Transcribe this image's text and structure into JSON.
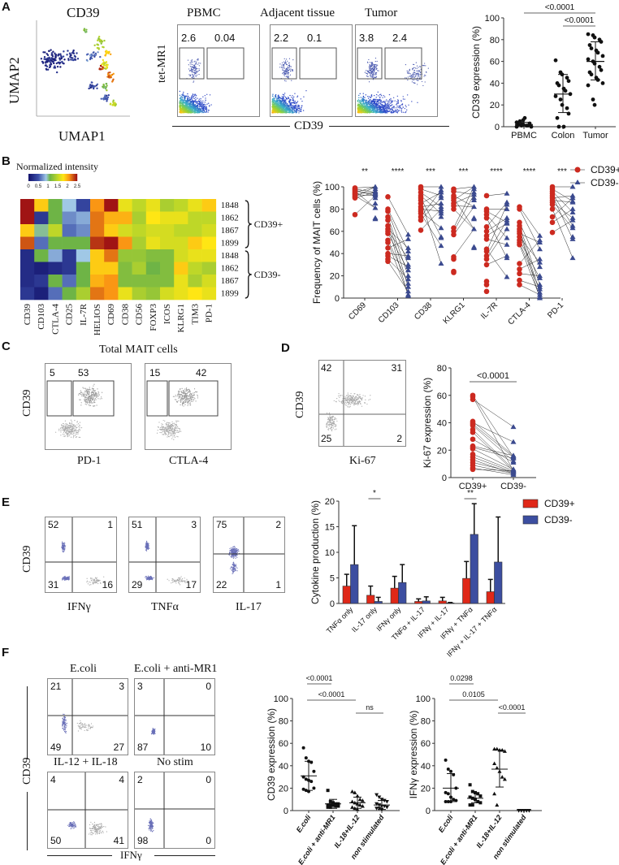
{
  "panels": {
    "A": {
      "label": "A",
      "umap": {
        "title": "CD39",
        "xlabel": "UMAP1",
        "ylabel": "UMAP2"
      },
      "facs": {
        "ylabel": "tet-MR1",
        "xlabel": "CD39",
        "plots": [
          {
            "title": "PBMC",
            "gate_left": "2.6",
            "gate_right": "0.04"
          },
          {
            "title": "Adjacent tissue",
            "gate_left": "2.2",
            "gate_right": "0.1"
          },
          {
            "title": "Tumor",
            "gate_left": "3.8",
            "gate_right": "2.4"
          }
        ]
      }
    },
    "B": {
      "label": "B",
      "heatmap_title": "Normalized intensity",
      "colorbar_ticks": [
        "0",
        "0.5",
        "1",
        "1.5",
        "2",
        "2.5"
      ],
      "row_labels": [
        "1848",
        "1862",
        "1867",
        "1899",
        "1848",
        "1862",
        "1867",
        "1899"
      ],
      "group_labels": [
        "CD39+",
        "CD39-"
      ]
    },
    "C": {
      "label": "C",
      "title": "Total MAIT cells",
      "ylabel": "CD39",
      "plots": [
        {
          "xlabel": "PD-1",
          "gate_left": "5",
          "gate_right": "53"
        },
        {
          "xlabel": "CTLA-4",
          "gate_left": "15",
          "gate_right": "42"
        }
      ]
    },
    "D": {
      "label": "D",
      "facs": {
        "ylabel": "CD39",
        "xlabel": "Ki-67",
        "q_ul": "42",
        "q_ur": "31",
        "q_ll": "25",
        "q_lr": "2"
      }
    },
    "E": {
      "label": "E",
      "ylabel": "CD39",
      "plots": [
        {
          "xlabel": "IFNγ",
          "q_ul": "52",
          "q_ur": "1",
          "q_ll": "31",
          "q_lr": "16"
        },
        {
          "xlabel": "TNFα",
          "q_ul": "51",
          "q_ur": "3",
          "q_ll": "29",
          "q_lr": "17"
        },
        {
          "xlabel": "IL-17",
          "q_ul": "75",
          "q_ur": "2",
          "q_ll": "22",
          "q_lr": "1"
        }
      ]
    },
    "F": {
      "label": "F",
      "ylabel": "CD39",
      "xlabel": "IFNγ",
      "plots": [
        {
          "title": "E.coli",
          "q_ul": "21",
          "q_ur": "3",
          "q_ll": "49",
          "q_lr": "27"
        },
        {
          "title": "E.coli + anti-MR1",
          "q_ul": "3",
          "q_ur": "0",
          "q_ll": "87",
          "q_lr": "10"
        },
        {
          "title": "IL-12 + IL-18",
          "q_ul": "4",
          "q_ur": "4",
          "q_ll": "50",
          "q_lr": "41"
        },
        {
          "title": "No stim",
          "q_ul": "2",
          "q_ur": "0",
          "q_ll": "98",
          "q_lr": "0"
        }
      ]
    }
  },
  "colors": {
    "cd39_pos": "#cc2a20",
    "cd39_neg": "#3b4a8f",
    "bar_pos": "#e02818",
    "bar_neg": "#3c4ea0",
    "dot": "#111111"
  },
  "chart_data": [
    {
      "id": "A-scatter",
      "type": "scatter",
      "title": "",
      "xlabel": "",
      "ylabel": "CD39 expression (%)",
      "categories": [
        "PBMC",
        "Colon",
        "Tumor"
      ],
      "ylim": [
        0,
        100
      ],
      "yticks": [
        0,
        20,
        40,
        60,
        80,
        100
      ],
      "points": [
        [
          0,
          1,
          2,
          1,
          3,
          2,
          5,
          8,
          1,
          0,
          4,
          2,
          6
        ],
        [
          61,
          50,
          48,
          45,
          42,
          40,
          38,
          35,
          33,
          30,
          28,
          25,
          20,
          17,
          12,
          8,
          0,
          0
        ],
        [
          85,
          84,
          82,
          80,
          78,
          75,
          72,
          70,
          68,
          65,
          62,
          60,
          58,
          55,
          52,
          50,
          48,
          45,
          43,
          40,
          38,
          25,
          20
        ]
      ],
      "means": [
        2,
        30,
        60
      ],
      "sd": [
        [
          0,
          4
        ],
        [
          13,
          48
        ],
        [
          43,
          78
        ]
      ],
      "annotations": [
        {
          "text": "<0.0001",
          "from": 0,
          "to": 2
        },
        {
          "text": "<0.0001",
          "from": 1,
          "to": 2
        }
      ]
    },
    {
      "id": "B-heatmap",
      "type": "heatmap",
      "columns": [
        "CD39",
        "CD103",
        "CTLA-4",
        "CD25",
        "IL-7R",
        "HELIOS",
        "CD69",
        "CD38",
        "CD56",
        "FOXP3",
        "ICOS",
        "KLRG1",
        "TIM3",
        "PD-1"
      ],
      "rows": [
        "1848",
        "1862",
        "1867",
        "1899",
        "1848",
        "1862",
        "1867",
        "1899"
      ],
      "groups": [
        {
          "name": "CD39+",
          "rows": [
            0,
            3
          ]
        },
        {
          "name": "CD39-",
          "rows": [
            4,
            7
          ]
        }
      ],
      "range": [
        0,
        2.5
      ],
      "values": [
        [
          2.5,
          1.9,
          1.1,
          0.9,
          0.4,
          2.1,
          2.5,
          1.7,
          1.5,
          1.7,
          1.4,
          1.5,
          1.7,
          1.9
        ],
        [
          2.5,
          0.3,
          1.1,
          0.7,
          0.8,
          2.2,
          2.0,
          2.0,
          1.4,
          1.8,
          1.7,
          1.7,
          1.5,
          1.5
        ],
        [
          1.9,
          1.0,
          1.5,
          0.6,
          0.7,
          2.2,
          1.9,
          1.6,
          1.5,
          1.6,
          1.6,
          1.5,
          1.5,
          1.6
        ],
        [
          2.3,
          0.6,
          1.1,
          1.1,
          1.1,
          2.4,
          2.5,
          2.1,
          1.4,
          1.7,
          1.6,
          1.6,
          1.9,
          1.8
        ],
        [
          0.2,
          1.1,
          0.8,
          0.3,
          0.9,
          1.9,
          2.2,
          1.3,
          1.3,
          1.2,
          1.2,
          1.6,
          1.7,
          1.7
        ],
        [
          0.2,
          0.1,
          0.2,
          0.3,
          1.1,
          1.9,
          1.9,
          1.2,
          1.4,
          1.1,
          1.2,
          1.9,
          1.5,
          1.4
        ],
        [
          0.2,
          0.3,
          1.1,
          0.6,
          1.1,
          2.0,
          2.1,
          1.2,
          1.2,
          1.2,
          1.2,
          1.7,
          1.4,
          1.6
        ],
        [
          0.3,
          0.1,
          0.6,
          1.1,
          1.4,
          2.2,
          2.1,
          1.7,
          1.4,
          1.3,
          1.6,
          1.7,
          1.8,
          1.7
        ]
      ]
    },
    {
      "id": "B-paired",
      "type": "scatter",
      "ylabel": "Frequency of MAIT cells (%)",
      "categories": [
        "CD69",
        "CD103",
        "CD38",
        "KLRG1",
        "IL-7R",
        "CTLA-4",
        "PD-1"
      ],
      "significance": [
        "**",
        "****",
        "***",
        "***",
        "****",
        "****",
        "***"
      ],
      "ylim": [
        0,
        100
      ],
      "yticks": [
        0,
        20,
        40,
        60,
        80,
        100
      ],
      "legend": [
        "CD39+",
        "CD39-"
      ],
      "legend_position": "top-right",
      "series": [
        {
          "name": "CD39+",
          "values": [
            [
              99,
              98,
              97,
              96,
              95,
              94,
              93,
              92,
              91,
              90,
              75
            ],
            [
              91,
              80,
              78,
              73,
              70,
              65,
              62,
              60,
              58,
              52,
              50,
              45,
              40,
              38,
              35,
              33
            ],
            [
              100,
              98,
              95,
              92,
              90,
              88,
              85,
              82,
              80,
              78,
              76,
              73,
              70,
              61
            ],
            [
              98,
              96,
              92,
              90,
              88,
              85,
              83,
              80,
              63,
              60,
              57,
              37,
              35,
              24,
              23
            ],
            [
              92,
              80,
              78,
              75,
              72,
              64,
              60,
              56,
              53,
              44,
              42,
              38,
              35,
              30,
              15,
              12,
              6
            ],
            [
              82,
              80,
              68,
              65,
              62,
              60,
              58,
              55,
              52,
              50,
              48,
              31,
              26,
              22,
              16,
              12
            ],
            [
              100,
              98,
              96,
              94,
              92,
              90,
              88,
              86,
              84,
              80,
              73,
              68,
              59
            ]
          ]
        },
        {
          "name": "CD39-",
          "values": [
            [
              100,
              98,
              96,
              95,
              94,
              93,
              92,
              90,
              85,
              81,
              72,
              71
            ],
            [
              57,
              53,
              45,
              42,
              38,
              36,
              30,
              28,
              25,
              20,
              17,
              13,
              10,
              6,
              3,
              2
            ],
            [
              100,
              97,
              95,
              92,
              90,
              85,
              82,
              80,
              78,
              76,
              73,
              63,
              55,
              54,
              47,
              31
            ],
            [
              100,
              98,
              95,
              93,
              90,
              88,
              82,
              72,
              71,
              62,
              46,
              45
            ],
            [
              94,
              86,
              84,
              80,
              72,
              70,
              68,
              67,
              62,
              54,
              48,
              38,
              36,
              19
            ],
            [
              56,
              52,
              50,
              44,
              35,
              32,
              28,
              20,
              18,
              12,
              10,
              8,
              5,
              3,
              1,
              0
            ],
            [
              100,
              92,
              90,
              87,
              86,
              80,
              77,
              72,
              70,
              65,
              63,
              55,
              53,
              36
            ]
          ]
        }
      ]
    },
    {
      "id": "D-paired",
      "type": "scatter",
      "ylabel": "Ki-67 expression (%)",
      "categories": [
        "CD39+",
        "CD39-"
      ],
      "ylim": [
        0,
        80
      ],
      "yticks": [
        0,
        20,
        40,
        60,
        80
      ],
      "annotations": [
        {
          "text": "<0.0001",
          "from": 0,
          "to": 1
        }
      ],
      "pairs": [
        [
          60,
          15
        ],
        [
          59,
          5
        ],
        [
          57,
          37
        ],
        [
          41,
          16
        ],
        [
          40,
          26
        ],
        [
          39,
          15
        ],
        [
          38,
          12
        ],
        [
          35,
          6
        ],
        [
          33,
          5
        ],
        [
          28,
          11
        ],
        [
          23,
          16
        ],
        [
          22,
          14
        ],
        [
          21,
          6
        ],
        [
          17,
          5
        ],
        [
          15,
          4
        ],
        [
          13,
          3
        ],
        [
          11,
          4
        ],
        [
          9,
          3
        ],
        [
          7,
          2
        ],
        [
          6,
          5
        ]
      ]
    },
    {
      "id": "E-bar",
      "type": "bar",
      "ylabel": "Cytokine production (%)",
      "categories": [
        "TNFα only",
        "IL-17 only",
        "IFNγ only",
        "TNFα + IL-17",
        "IFNγ + IL-17",
        "IFNγ + TNFα",
        "IFNγ + IL-17 + TNFα"
      ],
      "ylim": [
        0,
        20
      ],
      "yticks": [
        0,
        5,
        10,
        15,
        20
      ],
      "legend_position": "top-right",
      "series": [
        {
          "name": "CD39+",
          "values": [
            3.4,
            1.6,
            3.0,
            0.4,
            0.5,
            4.9,
            2.3
          ],
          "err": [
            2.3,
            1.8,
            2.3,
            0.5,
            0.7,
            3.3,
            2.4
          ]
        },
        {
          "name": "CD39-",
          "values": [
            7.6,
            0.4,
            4.1,
            0.5,
            0.1,
            13.5,
            8.1
          ],
          "err": [
            7.6,
            0.8,
            3.5,
            0.8,
            0.1,
            6.0,
            8.8
          ]
        }
      ],
      "annotations": [
        {
          "text": "*",
          "category": 1
        },
        {
          "text": "**",
          "category": 5
        }
      ]
    },
    {
      "id": "F-CD39",
      "type": "scatter",
      "ylabel": "CD39 expression (%)",
      "categories": [
        "E.coli",
        "E.coli + anti-MR1",
        "IL-18+IL-12",
        "non stimulated"
      ],
      "ylim": [
        0,
        100
      ],
      "yticks": [
        0,
        20,
        40,
        60,
        80,
        100
      ],
      "points": [
        [
          56,
          47,
          44,
          43,
          35,
          30,
          28,
          27,
          26,
          20,
          19,
          18,
          17
        ],
        [
          18,
          8,
          7,
          6,
          6,
          5,
          5,
          5,
          4,
          4,
          3,
          3
        ],
        [
          17,
          16,
          13,
          10,
          9,
          8,
          7,
          6,
          5,
          4,
          3,
          2,
          1
        ],
        [
          14,
          12,
          10,
          9,
          8,
          6,
          5,
          4,
          4,
          3,
          2,
          2,
          1
        ]
      ],
      "means": [
        31,
        6,
        7,
        5
      ],
      "sd": [
        [
          18,
          44
        ],
        [
          2,
          10
        ],
        [
          2,
          12
        ],
        [
          1,
          9
        ]
      ],
      "annotations": [
        {
          "text": "<0.0001",
          "from": 0,
          "to": 1
        },
        {
          "text": "<0.0001",
          "from": 0,
          "to": 2
        },
        {
          "text": "ns",
          "from": 2,
          "to": 3
        }
      ]
    },
    {
      "id": "F-IFNg",
      "type": "scatter",
      "ylabel": "IFNγ expression (%)",
      "categories": [
        "E.coli",
        "E.coli + anti-MR1",
        "IL-18+IL-12",
        "non stimulated"
      ],
      "ylim": [
        0,
        100
      ],
      "yticks": [
        0,
        20,
        40,
        60,
        80,
        100
      ],
      "points": [
        [
          45,
          37,
          35,
          32,
          20,
          16,
          15,
          12,
          10,
          9,
          8,
          8,
          8
        ],
        [
          23,
          17,
          16,
          15,
          13,
          12,
          11,
          10,
          8,
          7,
          5,
          5
        ],
        [
          55,
          55,
          54,
          54,
          53,
          42,
          38,
          35,
          30,
          28,
          15,
          5
        ],
        [
          0,
          0,
          0,
          0,
          0,
          0,
          0,
          0,
          0,
          0
        ]
      ],
      "means": [
        20,
        11,
        37,
        0
      ],
      "sd": [
        [
          8,
          33
        ],
        [
          7,
          16
        ],
        [
          21,
          54
        ],
        [
          0,
          0
        ]
      ],
      "annotations": [
        {
          "text": "0.0298",
          "from": 0,
          "to": 1
        },
        {
          "text": "0.0105",
          "from": 0,
          "to": 2
        },
        {
          "text": "<0.0001",
          "from": 2,
          "to": 3
        }
      ]
    }
  ]
}
